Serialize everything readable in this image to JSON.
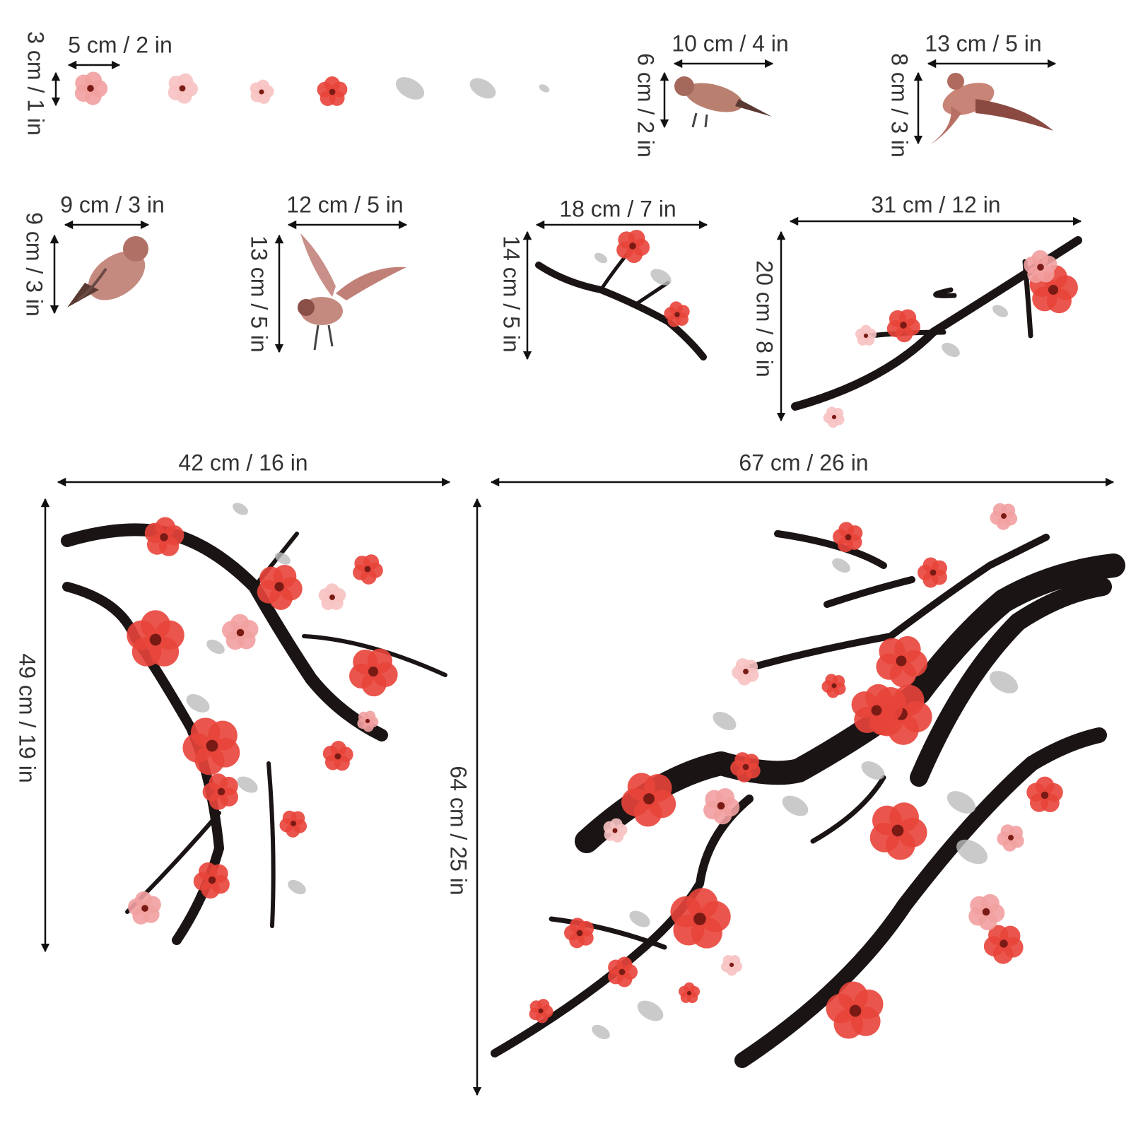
{
  "items": [
    {
      "width": "5 cm / 2 in",
      "height": "3 cm / 1 in"
    },
    {
      "width": "10 cm / 4 in",
      "height": "6 cm / 2 in"
    },
    {
      "width": "13 cm / 5 in",
      "height": "8 cm / 3 in"
    },
    {
      "width": "9 cm / 3 in",
      "height": "9 cm / 3 in"
    },
    {
      "width": "12 cm / 5 in",
      "height": "13 cm / 5 in"
    },
    {
      "width": "18 cm / 7 in",
      "height": "14 cm / 5 in"
    },
    {
      "width": "31 cm / 12 in",
      "height": "20 cm / 8 in"
    },
    {
      "width": "42 cm / 16 in",
      "height": "49 cm / 19 in"
    },
    {
      "width": "67 cm / 26 in",
      "height": "64 cm / 25 in"
    }
  ]
}
